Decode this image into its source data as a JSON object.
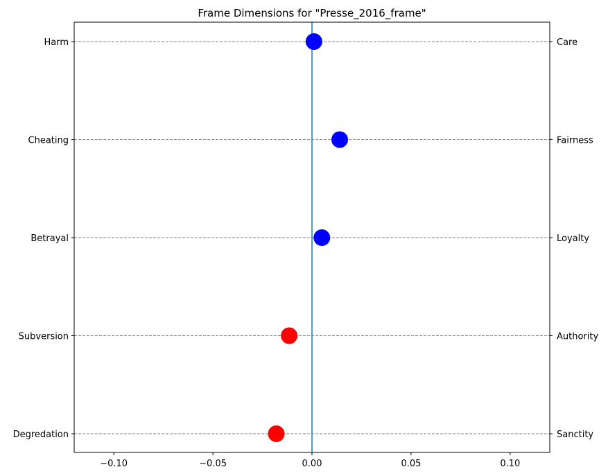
{
  "chart_data": {
    "type": "scatter",
    "title": "Frame Dimensions for \"Presse_2016_frame\"",
    "xlabel": "",
    "ylabel": "",
    "xlim": [
      -0.12,
      0.12
    ],
    "x_ticks": [
      -0.1,
      -0.05,
      0.0,
      0.05,
      0.1
    ],
    "x_tick_labels": [
      "−0.10",
      "−0.05",
      "0.00",
      "0.05",
      "0.10"
    ],
    "grid": "horizontal dashed at each category",
    "reference_line": {
      "x": 0.0,
      "color": "#1f77b4"
    },
    "categories_left": [
      "Harm",
      "Cheating",
      "Betrayal",
      "Subversion",
      "Degredation"
    ],
    "categories_right": [
      "Care",
      "Fairness",
      "Loyalty",
      "Authority",
      "Sanctity"
    ],
    "points": [
      {
        "left": "Harm",
        "right": "Care",
        "value": 0.001,
        "color": "#0000ff"
      },
      {
        "left": "Cheating",
        "right": "Fairness",
        "value": 0.014,
        "color": "#0000ff"
      },
      {
        "left": "Betrayal",
        "right": "Loyalty",
        "value": 0.005,
        "color": "#0000ff"
      },
      {
        "left": "Subversion",
        "right": "Authority",
        "value": -0.0115,
        "color": "#ff0000"
      },
      {
        "left": "Degredation",
        "right": "Sanctity",
        "value": -0.018,
        "color": "#ff0000"
      }
    ]
  }
}
